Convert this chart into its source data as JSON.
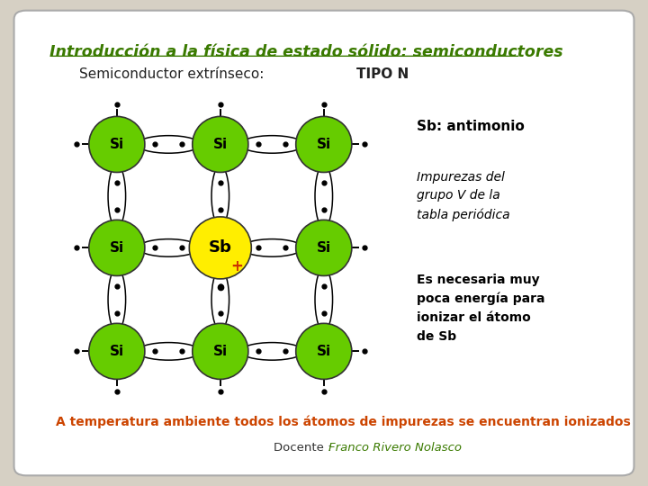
{
  "title": "Introducción a la física de estado sólido: semiconductores",
  "subtitle_normal": "Semiconductor extrínseco: ",
  "subtitle_bold": "TIPO N",
  "bg_outer": "#d6d0c4",
  "bg_inner": "#ffffff",
  "title_color": "#3a7a00",
  "subtitle_color": "#222222",
  "atom_si_color": "#66cc00",
  "atom_sb_color": "#ffee00",
  "plus_color": "#cc3300",
  "annotation1": "Sb: antimonio",
  "annotation2": "Impurezas del\ngrupo V de la\ntabla periódica",
  "annotation3": "Es necesaria muy\npoca energía para\nionizar el átomo\nde Sb",
  "annotation_color": "#000000",
  "bottom_text": "A temperatura ambiente todos los átomos de impurezas se encuentran ionizados",
  "bottom_color": "#cc4400",
  "docente_label": "Docente : ",
  "docente_name": "Franco Rivero Nolasco",
  "docente_label_color": "#333333",
  "docente_name_color": "#3a7a00"
}
